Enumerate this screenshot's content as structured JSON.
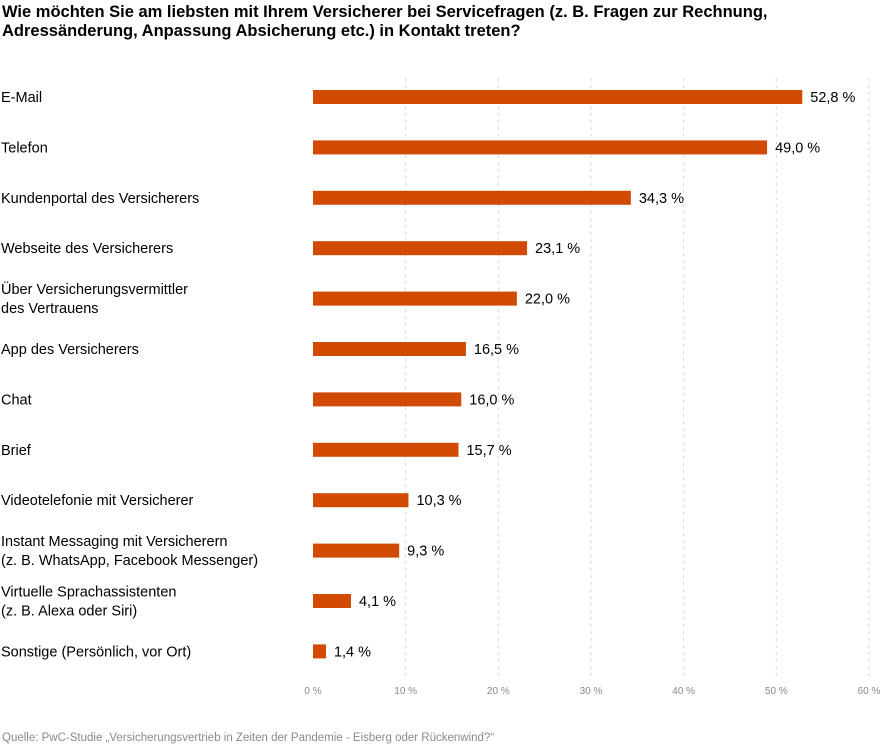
{
  "title": "Wie möchten Sie am liebsten mit Ihrem Versicherer bei Servicefragen (z. B. Fragen zur Rechnung, Adressänderung, Anpassung Absicherung etc.) in Kontakt treten?",
  "source": "Quelle: PwC-Studie „Versicherungsvertrieb in Zeiten der Pandemie - Eisberg oder Rückenwind?“",
  "colors": {
    "bar": "#d04a02",
    "grid": "#d9d9d9",
    "tick": "#8a8a8a"
  },
  "chart_data": {
    "type": "bar",
    "orientation": "horizontal",
    "categories": [
      [
        "E-Mail"
      ],
      [
        "Telefon"
      ],
      [
        "Kundenportal des Versicherers"
      ],
      [
        "Webseite des Versicherers"
      ],
      [
        "Über Versicherungsvermittler",
        "des Vertrauens"
      ],
      [
        "App des Versicherers"
      ],
      [
        "Chat"
      ],
      [
        "Brief"
      ],
      [
        "Videotelefonie mit Versicherer"
      ],
      [
        "Instant Messaging mit Versicherern",
        "(z. B. WhatsApp, Facebook Messenger)"
      ],
      [
        "Virtuelle Sprachassistenten",
        "(z. B. Alexa oder Siri)"
      ],
      [
        "Sonstige (Persönlich, vor Ort)"
      ]
    ],
    "values": [
      52.8,
      49.0,
      34.3,
      23.1,
      22.0,
      16.5,
      16.0,
      15.7,
      10.3,
      9.3,
      4.1,
      1.4
    ],
    "value_labels": [
      "52,8 %",
      "49,0 %",
      "34,3 %",
      "23,1 %",
      "22,0 %",
      "16,5 %",
      "16,0 %",
      "15,7 %",
      "10,3 %",
      "9,3 %",
      "4,1 %",
      "1,4 %"
    ],
    "xlim": [
      0,
      60
    ],
    "xticks": [
      0,
      10,
      20,
      30,
      40,
      50,
      60
    ],
    "xtick_labels": [
      "0 %",
      "10 %",
      "20 %",
      "30 %",
      "40 %",
      "50 %",
      "60 %"
    ],
    "grid": true,
    "legend": "none"
  }
}
